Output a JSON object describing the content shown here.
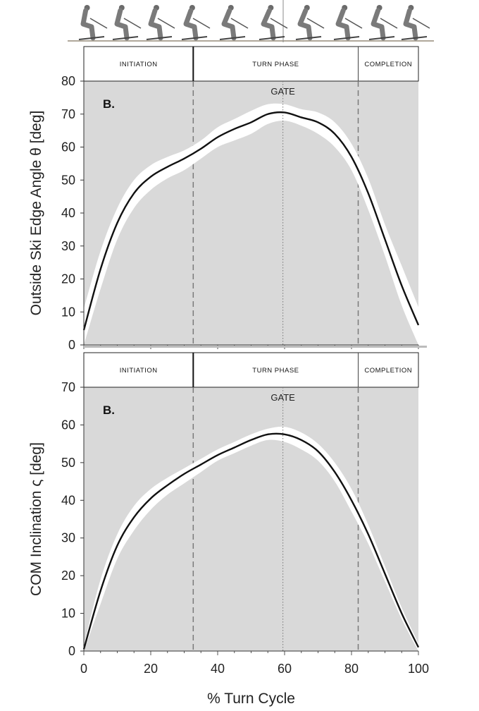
{
  "chart_data": [
    {
      "type": "line",
      "panel_label": "B.",
      "ylabel": "Outside Ski Edge Angle θ [deg]",
      "xlabel": "",
      "xlim": [
        0,
        100
      ],
      "ylim": [
        0,
        80
      ],
      "yticks": [
        0,
        10,
        20,
        30,
        40,
        50,
        60,
        70,
        80
      ],
      "phases": [
        {
          "label": "INITIATION",
          "start": 0,
          "end": 32.7
        },
        {
          "label": "TURN PHASE",
          "start": 32.7,
          "end": 82
        },
        {
          "label": "COMPLETION",
          "start": 82,
          "end": 100
        }
      ],
      "gate": {
        "label": "GATE",
        "x": 59.5
      },
      "series": [
        {
          "role": "mean",
          "x": [
            0,
            5,
            10,
            15,
            20,
            25,
            30,
            35,
            40,
            45,
            50,
            55,
            60,
            65,
            70,
            75,
            80,
            85,
            90,
            95,
            100
          ],
          "y": [
            4.5,
            23,
            37,
            46,
            51,
            54,
            56.5,
            59.5,
            63,
            65.5,
            67.5,
            70,
            70.5,
            69,
            67.5,
            64,
            57,
            46,
            32,
            18,
            6
          ]
        },
        {
          "role": "upper",
          "x": [
            0,
            5,
            10,
            15,
            20,
            25,
            30,
            35,
            40,
            45,
            50,
            55,
            60,
            65,
            70,
            75,
            80,
            85,
            90,
            95,
            100
          ],
          "y": [
            11,
            28.5,
            41.5,
            50,
            54.5,
            57,
            59,
            62,
            66,
            68.5,
            71,
            73,
            73,
            71.5,
            70.5,
            67.5,
            61,
            50.5,
            36.5,
            24,
            11.5
          ]
        },
        {
          "role": "lower",
          "x": [
            0,
            5,
            10,
            15,
            20,
            25,
            30,
            35,
            40,
            45,
            50,
            55,
            60,
            65,
            70,
            75,
            80,
            85,
            90,
            95,
            100
          ],
          "y": [
            0,
            17,
            32,
            41.5,
            47,
            50.5,
            53,
            56.5,
            60,
            62,
            64,
            67,
            68,
            66.5,
            64,
            60,
            53,
            41,
            27,
            12,
            0
          ]
        }
      ]
    },
    {
      "type": "line",
      "panel_label": "B.",
      "ylabel": "COM Inclination ς [deg]",
      "xlabel": "% Turn Cycle",
      "xlim": [
        0,
        100
      ],
      "ylim": [
        0,
        70
      ],
      "yticks": [
        0,
        10,
        20,
        30,
        40,
        50,
        60,
        70
      ],
      "xticks": [
        0,
        20,
        40,
        60,
        80,
        100
      ],
      "phases": [
        {
          "label": "INITIATION",
          "start": 0,
          "end": 32.7
        },
        {
          "label": "TURN PHASE",
          "start": 32.7,
          "end": 82
        },
        {
          "label": "COMPLETION",
          "start": 82,
          "end": 100
        }
      ],
      "gate": {
        "label": "GATE",
        "x": 59.5
      },
      "series": [
        {
          "role": "mean",
          "x": [
            0,
            5,
            10,
            15,
            20,
            25,
            30,
            35,
            40,
            45,
            50,
            55,
            60,
            65,
            70,
            75,
            80,
            85,
            90,
            95,
            100
          ],
          "y": [
            0.5,
            16,
            28,
            35.5,
            40.5,
            44,
            47,
            49.5,
            52,
            54,
            56,
            57.5,
            57.5,
            56,
            53,
            47.5,
            40,
            31,
            20.5,
            10,
            1
          ]
        },
        {
          "role": "upper",
          "x": [
            0,
            5,
            10,
            15,
            20,
            25,
            30,
            35,
            40,
            45,
            50,
            55,
            60,
            65,
            70,
            75,
            80,
            85,
            90,
            95,
            100
          ],
          "y": [
            1.5,
            19,
            31,
            38.5,
            43,
            46,
            48.5,
            51,
            53.5,
            55.5,
            57.5,
            59,
            59.5,
            58,
            55,
            50,
            43,
            33.5,
            22.5,
            11.5,
            2
          ]
        },
        {
          "role": "lower",
          "x": [
            0,
            5,
            10,
            15,
            20,
            25,
            30,
            35,
            40,
            45,
            50,
            55,
            60,
            65,
            70,
            75,
            80,
            85,
            90,
            95,
            100
          ],
          "y": [
            0,
            12.5,
            24.5,
            32,
            37.5,
            41.5,
            44.5,
            47.5,
            50.5,
            52.5,
            54.5,
            56,
            55.5,
            53.5,
            50.5,
            45,
            37,
            28.5,
            18.5,
            8.5,
            0
          ]
        }
      ]
    }
  ]
}
